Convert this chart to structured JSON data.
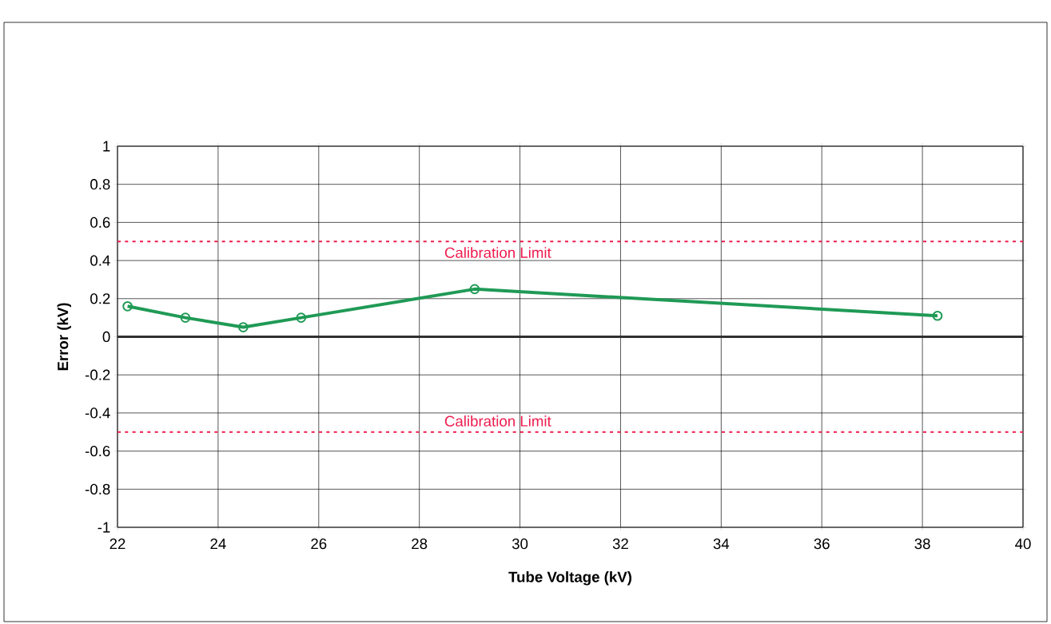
{
  "chart_data": {
    "type": "line",
    "xlabel": "Tube Voltage (kV)",
    "ylabel": "Error (kV)",
    "x": [
      22.2,
      23.35,
      24.5,
      25.65,
      29.1,
      38.3
    ],
    "values": [
      0.16,
      0.1,
      0.05,
      0.1,
      0.25,
      0.11
    ],
    "color": "#1f9a55",
    "marker": "circle",
    "line_style": "solid",
    "grid": true,
    "xlim": [
      22,
      40
    ],
    "xticks": [
      22,
      24,
      26,
      28,
      30,
      32,
      34,
      36,
      38,
      40
    ],
    "ylim": [
      -1,
      1
    ],
    "yticks": [
      -1,
      -0.8,
      -0.6,
      -0.4,
      -0.2,
      0,
      0.2,
      0.4,
      0.6,
      0.8,
      1
    ],
    "ref_lines": [
      {
        "axis": "y",
        "value": 0.5,
        "label": "Calibration Limit",
        "color": "#ee1c4e",
        "line_style": "dotted"
      },
      {
        "axis": "y",
        "value": -0.5,
        "label": "Calibration Limit",
        "color": "#ee1c4e",
        "line_style": "dotted"
      },
      {
        "axis": "y",
        "value": 0,
        "color": "#303030",
        "line_style": "solid"
      }
    ]
  }
}
